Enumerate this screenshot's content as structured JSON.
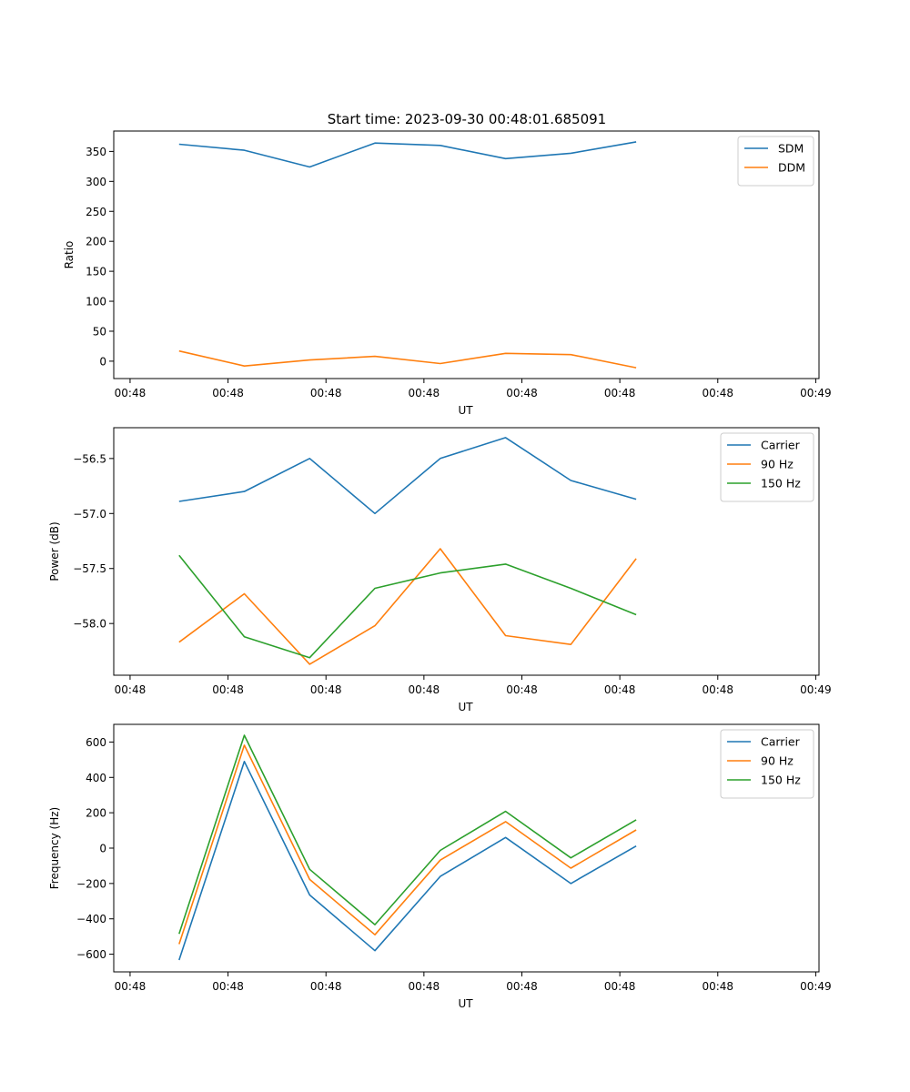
{
  "figure": {
    "title": "Start time: 2023-09-30 00:48:01.685091"
  },
  "colors": {
    "blue": "#1f77b4",
    "orange": "#ff7f0e",
    "green": "#2ca02c"
  },
  "chart_data": [
    {
      "type": "line",
      "xlabel": "UT",
      "ylabel": "Ratio",
      "x_tick_labels": [
        "00:48",
        "00:48",
        "00:48",
        "00:48",
        "00:48",
        "00:48",
        "00:48",
        "00:49"
      ],
      "x_tick_index": [
        -0.5,
        1,
        2.5,
        4,
        5.5,
        7,
        8.5,
        10
      ],
      "xlim": [
        -0.75,
        10.05
      ],
      "x": [
        0.25,
        1.25,
        2.25,
        3.25,
        4.25,
        5.25,
        6.25,
        7.25
      ],
      "ylim": [
        -29,
        384
      ],
      "yticks": [
        0,
        50,
        100,
        150,
        200,
        250,
        300,
        350
      ],
      "legend_position": "top-right",
      "series": [
        {
          "name": "SDM",
          "color": "blue",
          "values": [
            362,
            352,
            324,
            364,
            360,
            338,
            347,
            366
          ]
        },
        {
          "name": "DDM",
          "color": "orange",
          "values": [
            17,
            -8,
            2,
            8,
            -4,
            13,
            11,
            -11
          ]
        }
      ]
    },
    {
      "type": "line",
      "xlabel": "UT",
      "ylabel": "Power (dB)",
      "x_tick_labels": [
        "00:48",
        "00:48",
        "00:48",
        "00:48",
        "00:48",
        "00:48",
        "00:48",
        "00:49"
      ],
      "x_tick_index": [
        -0.5,
        1,
        2.5,
        4,
        5.5,
        7,
        8.5,
        10
      ],
      "xlim": [
        -0.75,
        10.05
      ],
      "x": [
        0.25,
        1.25,
        2.25,
        3.25,
        4.25,
        5.25,
        6.25,
        7.25
      ],
      "ylim": [
        -58.47,
        -56.22
      ],
      "yticks": [
        -58.0,
        -57.5,
        -57.0,
        -56.5
      ],
      "ytick_labels": [
        "−58.0",
        "−57.5",
        "−57.0",
        "−56.5"
      ],
      "legend_position": "top-right",
      "series": [
        {
          "name": "Carrier",
          "color": "blue",
          "values": [
            -56.89,
            -56.8,
            -56.5,
            -57.0,
            -56.5,
            -56.31,
            -56.7,
            -56.87
          ]
        },
        {
          "name": "90 Hz",
          "color": "orange",
          "values": [
            -58.17,
            -57.73,
            -58.37,
            -58.02,
            -57.32,
            -58.11,
            -58.19,
            -57.41
          ]
        },
        {
          "name": "150 Hz",
          "color": "green",
          "values": [
            -57.38,
            -58.12,
            -58.31,
            -57.68,
            -57.54,
            -57.46,
            -57.68,
            -57.92
          ]
        }
      ]
    },
    {
      "type": "line",
      "xlabel": "UT",
      "ylabel": "Frequency (Hz)",
      "x_tick_labels": [
        "00:48",
        "00:48",
        "00:48",
        "00:48",
        "00:48",
        "00:48",
        "00:48",
        "00:49"
      ],
      "x_tick_index": [
        -0.5,
        1,
        2.5,
        4,
        5.5,
        7,
        8.5,
        10
      ],
      "xlim": [
        -0.75,
        10.05
      ],
      "x": [
        0.25,
        1.25,
        2.25,
        3.25,
        4.25,
        5.25,
        6.25,
        7.25
      ],
      "ylim": [
        -700,
        700
      ],
      "yticks": [
        -600,
        -400,
        -200,
        0,
        200,
        400,
        600
      ],
      "ytick_labels": [
        "−600",
        "−400",
        "−200",
        "0",
        "200",
        "400",
        "600"
      ],
      "legend_position": "top-right",
      "series": [
        {
          "name": "Carrier",
          "color": "blue",
          "values": [
            -633,
            490,
            -265,
            -580,
            -160,
            60,
            -200,
            12
          ]
        },
        {
          "name": "90 Hz",
          "color": "orange",
          "values": [
            -543,
            582,
            -177,
            -490,
            -68,
            150,
            -113,
            103
          ]
        },
        {
          "name": "150 Hz",
          "color": "green",
          "values": [
            -485,
            638,
            -120,
            -433,
            -13,
            208,
            -55,
            160
          ]
        }
      ]
    }
  ]
}
